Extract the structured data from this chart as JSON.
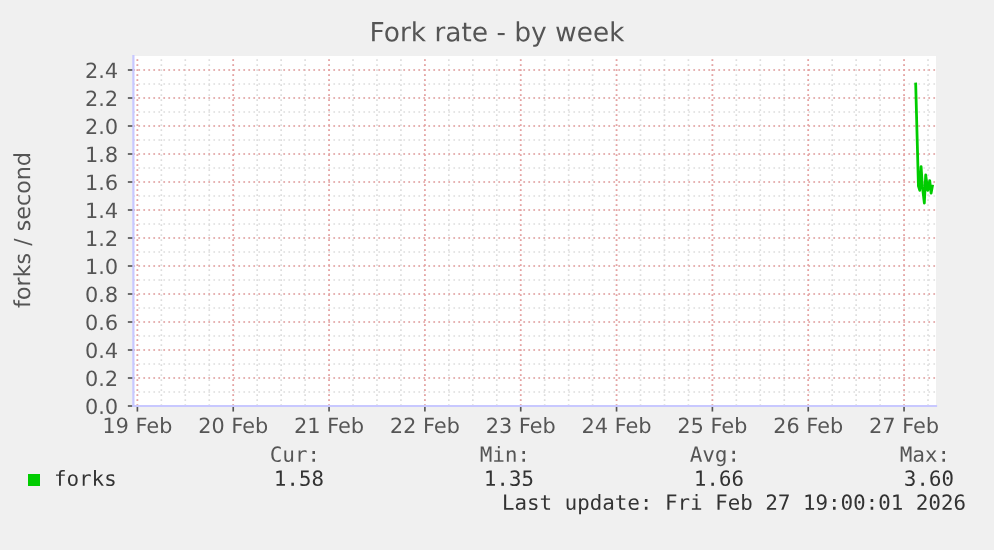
{
  "chart_data": {
    "type": "line",
    "title": "Fork rate - by week",
    "ylabel": "forks / second",
    "x": [
      "2026-02-27T02:55",
      "2026-02-27T03:36",
      "2026-02-27T03:56",
      "2026-02-27T04:16",
      "2026-02-27T04:35",
      "2026-02-27T05:05",
      "2026-02-27T05:25",
      "2026-02-27T05:56",
      "2026-02-27T06:26",
      "2026-02-27T06:46",
      "2026-02-27T07:06"
    ],
    "series": [
      {
        "name": "forks",
        "color": "#00cc00",
        "values": [
          2.3,
          1.57,
          1.54,
          1.71,
          1.57,
          1.45,
          1.65,
          1.54,
          1.61,
          1.52,
          1.57
        ]
      }
    ],
    "xlim": [
      "2026-02-18T23:00",
      "2026-02-27T08:00"
    ],
    "xticks": [
      {
        "value": "2026-02-19",
        "label": "19 Feb"
      },
      {
        "value": "2026-02-20",
        "label": "20 Feb"
      },
      {
        "value": "2026-02-21",
        "label": "21 Feb"
      },
      {
        "value": "2026-02-22",
        "label": "22 Feb"
      },
      {
        "value": "2026-02-23",
        "label": "23 Feb"
      },
      {
        "value": "2026-02-24",
        "label": "24 Feb"
      },
      {
        "value": "2026-02-25",
        "label": "25 Feb"
      },
      {
        "value": "2026-02-26",
        "label": "26 Feb"
      },
      {
        "value": "2026-02-27",
        "label": "27 Feb"
      }
    ],
    "ylim": [
      0,
      2.5
    ],
    "yticks": [
      {
        "value": 0,
        "label": "0.0"
      },
      {
        "value": 0.2,
        "label": "0.2"
      },
      {
        "value": 0.4,
        "label": "0.4"
      },
      {
        "value": 0.6,
        "label": "0.6"
      },
      {
        "value": 0.8,
        "label": "0.8"
      },
      {
        "value": 1.0,
        "label": "1.0"
      },
      {
        "value": 1.2,
        "label": "1.2"
      },
      {
        "value": 1.4,
        "label": "1.4"
      },
      {
        "value": 1.6,
        "label": "1.6"
      },
      {
        "value": 1.8,
        "label": "1.8"
      },
      {
        "value": 2.0,
        "label": "2.0"
      },
      {
        "value": 2.2,
        "label": "2.2"
      },
      {
        "value": 2.4,
        "label": "2.4"
      }
    ],
    "grid": true,
    "legend": "bottom",
    "annotations": [
      "Cur:",
      "Min:",
      "Avg:",
      "Max:",
      "1.58",
      "1.35",
      "1.66",
      "3.60",
      "Last update: Fri Feb 27 19:00:01 2026"
    ]
  }
}
